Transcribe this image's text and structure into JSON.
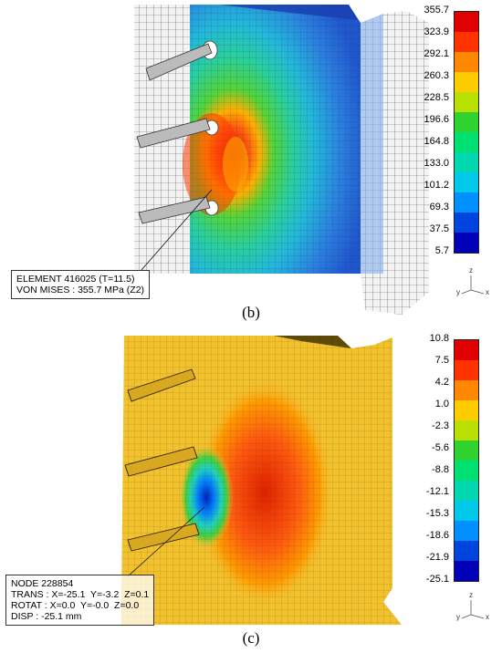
{
  "panel_b": {
    "caption": "(b)",
    "legend": {
      "ticks": [
        "355.7",
        "323.9",
        "292.1",
        "260.3",
        "228.5",
        "196.6",
        "164.8",
        "133.0",
        "101.2",
        "69.3",
        "37.5",
        "5.7"
      ],
      "colors": [
        "#e10000",
        "#ff3300",
        "#ff8800",
        "#ffcc00",
        "#b8e000",
        "#2fd22f",
        "#00e070",
        "#00d8b0",
        "#00c8e8",
        "#0090ff",
        "#0044e0",
        "#0000b8"
      ]
    },
    "info": {
      "line1": "ELEMENT 416025 (T=11.5)",
      "line2": "VON MISES : 355.7 MPa (Z2)"
    },
    "triad": {
      "z": "z",
      "y": "y",
      "x": "x"
    }
  },
  "panel_c": {
    "caption": "(c)",
    "legend": {
      "ticks": [
        "10.8",
        "7.5",
        "4.2",
        "1.0",
        "-2.3",
        "-5.6",
        "-8.8",
        "-12.1",
        "-15.3",
        "-18.6",
        "-21.9",
        "-25.1"
      ],
      "colors": [
        "#e10000",
        "#ff3300",
        "#ff8800",
        "#ffcc00",
        "#b8e000",
        "#2fd22f",
        "#00e070",
        "#00d8b0",
        "#00c8e8",
        "#0090ff",
        "#0044e0",
        "#0000b8"
      ]
    },
    "info": {
      "line1": "NODE 228854",
      "line2": "TRANS : X=-25.1  Y=-3.2  Z=0.1",
      "line3": "ROTAT : X=0.0  Y=-0.0  Z=0.0",
      "line4": "DISP : -25.1 mm"
    },
    "triad": {
      "z": "z",
      "y": "y",
      "x": "x"
    }
  }
}
